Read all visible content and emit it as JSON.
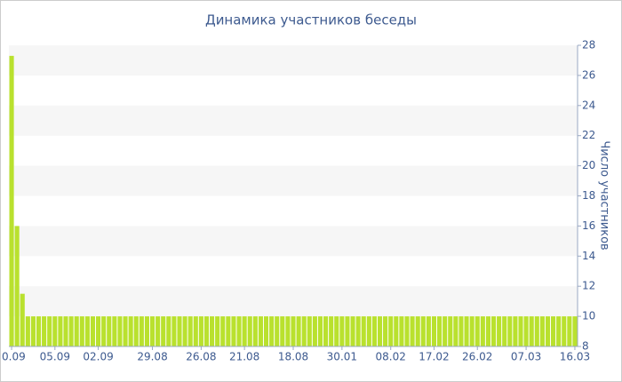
{
  "chart_data": {
    "type": "bar",
    "title": "Динамика участников беседы",
    "y_label": "Число участников",
    "categories": [
      "0.09",
      null,
      null,
      null,
      null,
      null,
      null,
      null,
      "05.09",
      null,
      null,
      null,
      null,
      null,
      null,
      null,
      "02.09",
      null,
      null,
      null,
      null,
      null,
      null,
      null,
      null,
      null,
      "29.08",
      null,
      null,
      null,
      null,
      null,
      null,
      null,
      null,
      "26.08",
      null,
      null,
      null,
      null,
      null,
      null,
      null,
      "21.08",
      null,
      null,
      null,
      null,
      null,
      null,
      null,
      null,
      "18.08",
      null,
      null,
      null,
      null,
      null,
      null,
      null,
      null,
      "30.01",
      null,
      null,
      null,
      null,
      null,
      null,
      null,
      null,
      "08.02",
      null,
      null,
      null,
      null,
      null,
      null,
      null,
      "17.02",
      null,
      null,
      null,
      null,
      null,
      null,
      null,
      "26.02",
      null,
      null,
      null,
      null,
      null,
      null,
      null,
      null,
      "07.03",
      null,
      null,
      null,
      null,
      null,
      null,
      null,
      null,
      "16.03"
    ],
    "values": [
      27.3,
      16,
      11.5,
      10,
      10,
      10,
      10,
      10,
      10,
      10,
      10,
      10,
      10,
      10,
      10,
      10,
      10,
      10,
      10,
      10,
      10,
      10,
      10,
      10,
      10,
      10,
      10,
      10,
      10,
      10,
      10,
      10,
      10,
      10,
      10,
      10,
      10,
      10,
      10,
      10,
      10,
      10,
      10,
      10,
      10,
      10,
      10,
      10,
      10,
      10,
      10,
      10,
      10,
      10,
      10,
      10,
      10,
      10,
      10,
      10,
      10,
      10,
      10,
      10,
      10,
      10,
      10,
      10,
      10,
      10,
      10,
      10,
      10,
      10,
      10,
      10,
      10,
      10,
      10,
      10,
      10,
      10,
      10,
      10,
      10,
      10,
      10,
      10,
      10,
      10,
      10,
      10,
      10,
      10,
      10,
      10,
      10,
      10,
      10,
      10,
      10,
      10,
      10,
      10,
      10
    ],
    "color": "#b9e12e",
    "ylim": [
      8,
      28
    ],
    "yticks": [
      8,
      10,
      12,
      14,
      16,
      18,
      20,
      22,
      24,
      26,
      28
    ],
    "grid": true
  }
}
